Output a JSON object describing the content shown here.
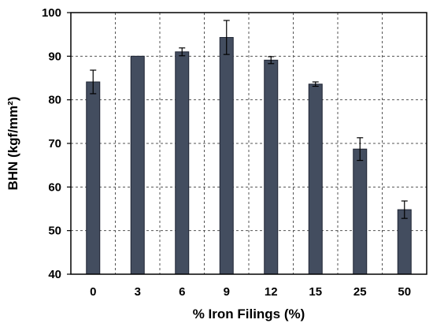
{
  "chart_data": {
    "type": "bar",
    "xlabel": "% Iron Filings (%)",
    "ylabel": "BHN (kgf/mm²)",
    "categories": [
      "0",
      "3",
      "6",
      "9",
      "12",
      "15",
      "25",
      "50"
    ],
    "values": [
      84.1,
      90.0,
      91.0,
      94.3,
      89.1,
      83.6,
      68.7,
      54.8
    ],
    "errors": [
      2.7,
      0.0,
      0.9,
      3.9,
      0.8,
      0.5,
      2.6,
      2.0
    ],
    "ylim": [
      40,
      100
    ],
    "yticks": [
      40,
      50,
      60,
      70,
      80,
      90,
      100
    ],
    "grid": true,
    "legend": "none",
    "bar_color": "#434d5f"
  }
}
